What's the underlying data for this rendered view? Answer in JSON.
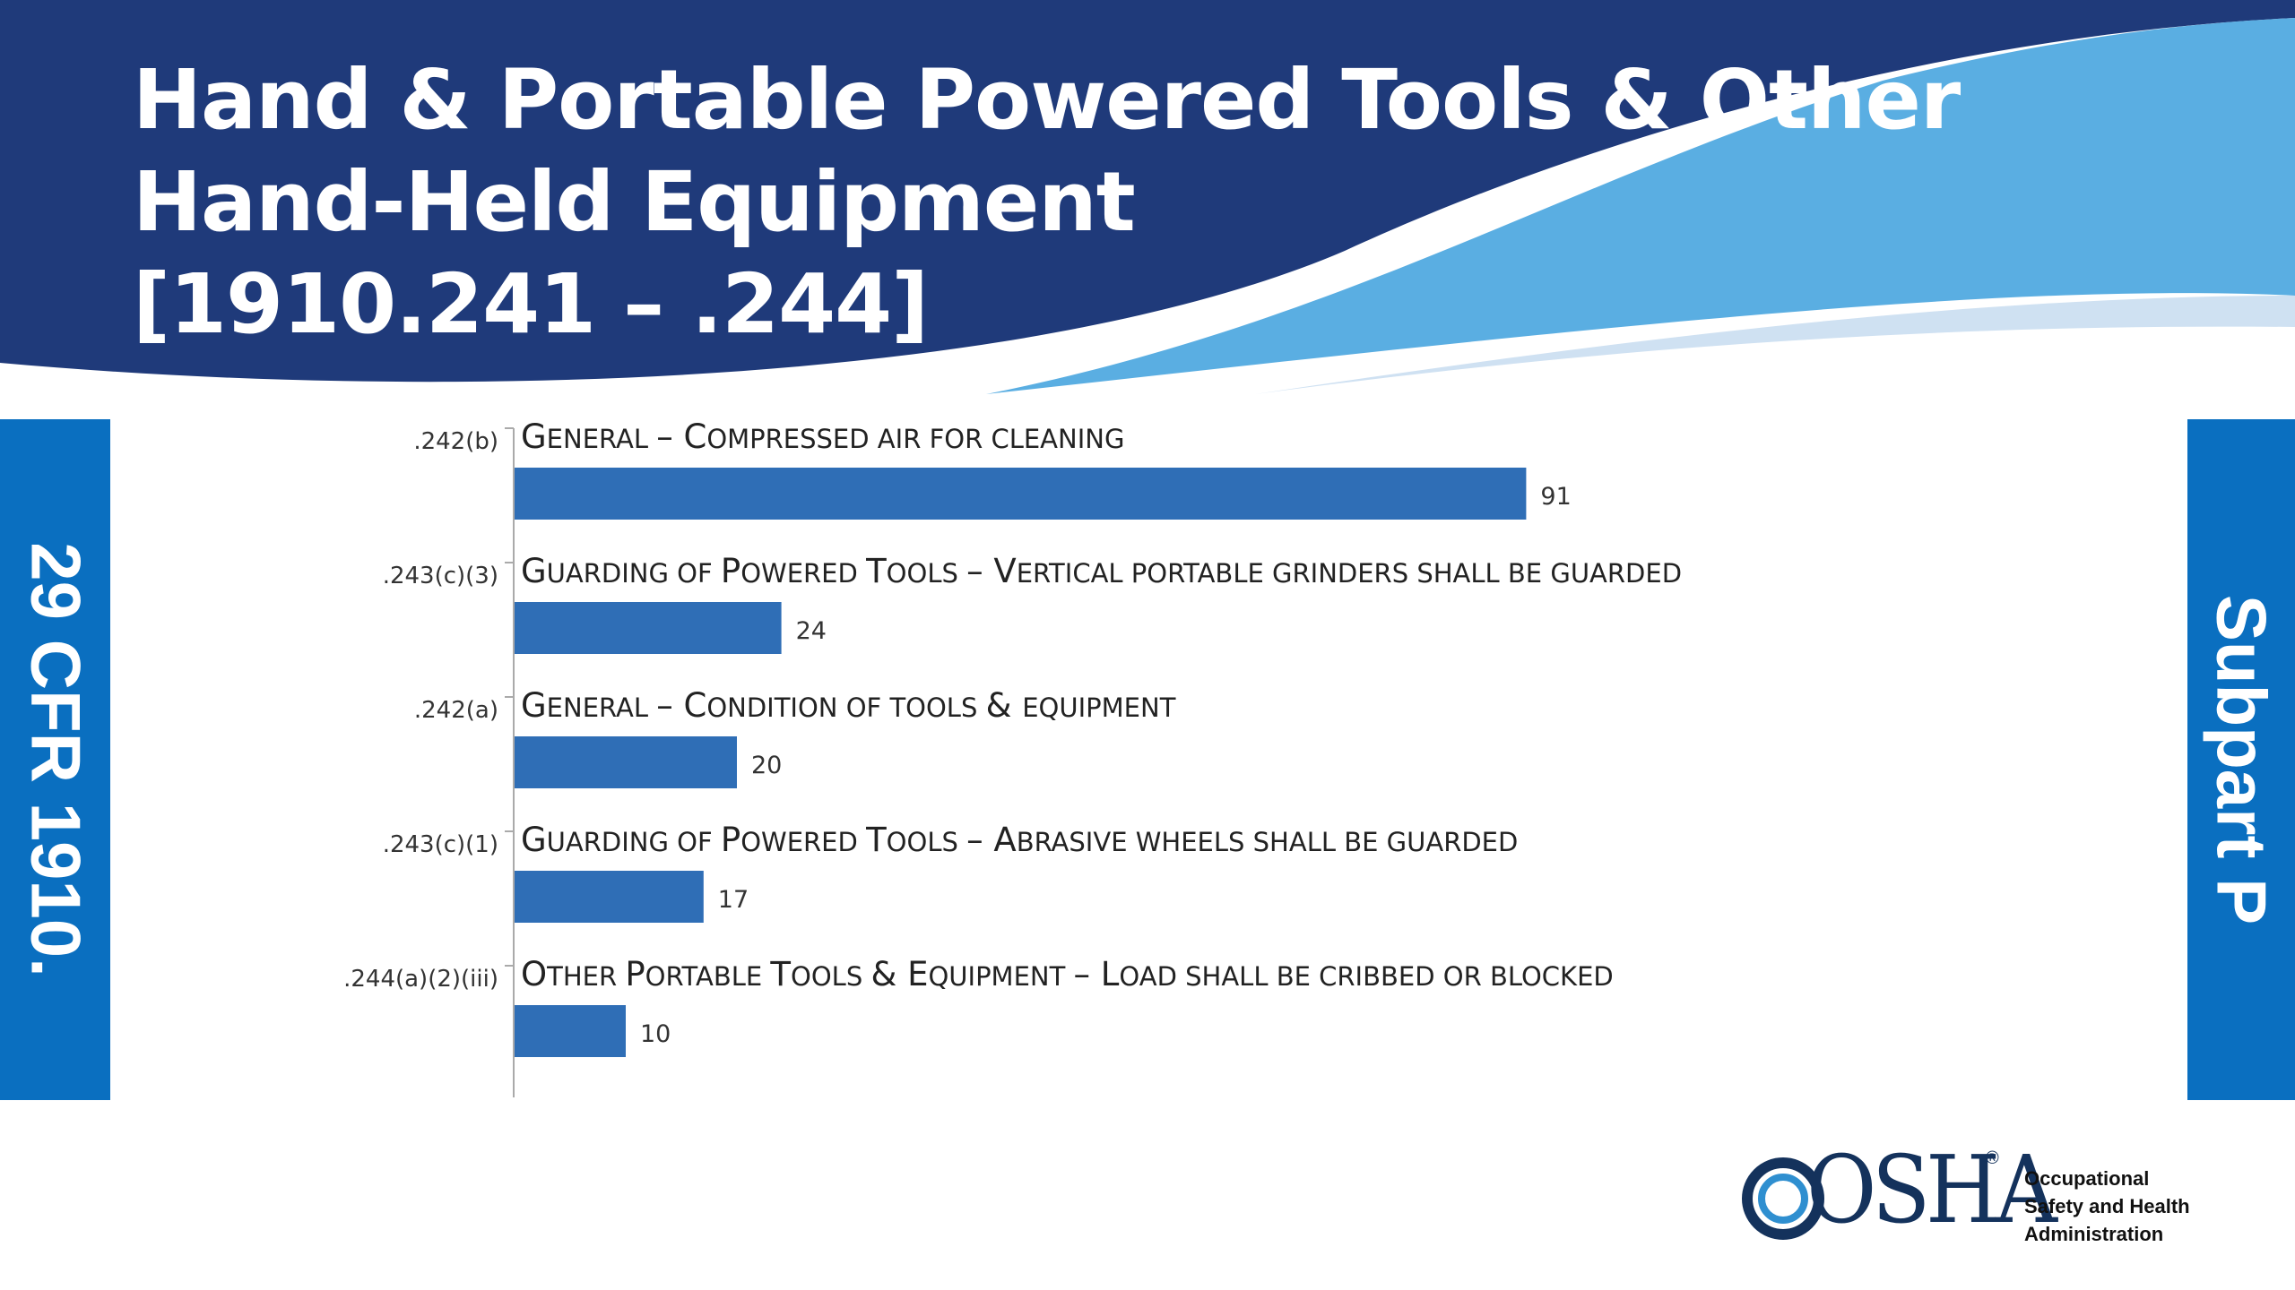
{
  "slide": {
    "title": "Hand & Portable Powered Tools & Other\nHand-Held Equipment\n[1910.241 – .244]",
    "left_tab": "29 CFR 1910.",
    "right_tab": "Subpart P"
  },
  "colors": {
    "header_dark": "#1f3a7a",
    "wave_light": "#5aaee2",
    "wave_pale": "#cfe1f2",
    "tab_blue": "#0a6fc0",
    "bar_blue": "#2f6eb6"
  },
  "logo": {
    "wordmark": "OSHA",
    "registered": "®",
    "agency": "Occupational\nSafety and Health\nAdministration"
  },
  "chart_data": {
    "type": "bar",
    "orientation": "horizontal",
    "categories": [
      ".242(b)",
      ".243(c)(3)",
      ".242(a)",
      ".243(c)(1)",
      ".244(a)(2)(iii)"
    ],
    "descriptions": [
      "General – Compressed air for cleaning",
      "Guarding of Powered Tools – Vertical portable grinders shall be guarded",
      "General – Condition of tools & equipment",
      "Guarding of Powered Tools – Abrasive wheels shall be guarded",
      "Other Portable Tools & Equipment – Load shall be cribbed or blocked"
    ],
    "values": [
      91,
      24,
      20,
      17,
      10
    ],
    "data_labels": true,
    "grid": false,
    "legend": "none"
  }
}
